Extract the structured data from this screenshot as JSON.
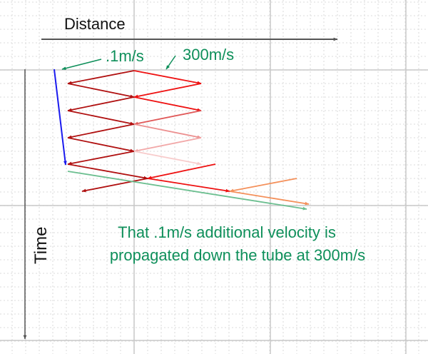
{
  "axes": {
    "x_label": "Distance",
    "y_label": "Time"
  },
  "annotations": {
    "slow_velocity": ".1m/s",
    "fast_velocity": "300m/s"
  },
  "caption": {
    "line1": "That .1m/s additional velocity is",
    "line2": "propagated down the tube at 300m/s"
  },
  "colors": {
    "text_green": "#0e8f5a",
    "axis": "#555555",
    "dark_red": "#b01010",
    "red": "#ee1111",
    "orange": "#f4905a",
    "green_line": "#6cbf90",
    "blue": "#1a1aee",
    "grid_major": "#c8c8c8",
    "grid_minor": "#e2e2e2"
  }
}
